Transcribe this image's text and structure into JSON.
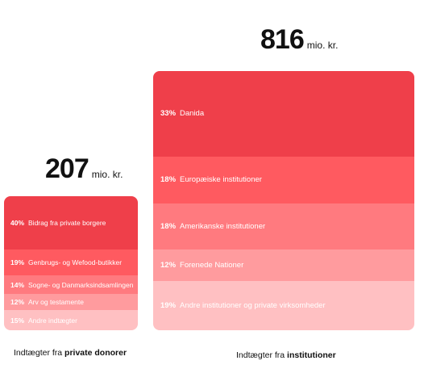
{
  "chart_data": [
    {
      "type": "bar",
      "stacked": true,
      "total_value": "207",
      "total_unit": "mio. kr.",
      "caption_prefix": "Indtægter fra",
      "caption_bold": "private donorer",
      "categories": [
        "Bidrag fra private borgere",
        "Genbrugs- og Wefood-butikker",
        "Sogne- og Danmarksindsamlingen",
        "Arv og testamente",
        "Andre indtægter"
      ],
      "values": [
        40,
        19,
        14,
        12,
        15
      ],
      "labels": [
        "40%",
        "19%",
        "14%",
        "12%",
        "15%"
      ],
      "colors": [
        "#ef3f4a",
        "#ff5a60",
        "#ff7a7f",
        "#ff9b9e",
        "#ffc0c2"
      ]
    },
    {
      "type": "bar",
      "stacked": true,
      "total_value": "816",
      "total_unit": "mio. kr.",
      "caption_prefix": "Indtægter fra",
      "caption_bold": "institutioner",
      "categories": [
        "Danida",
        "Europæiske institutioner",
        "Amerikanske institutioner",
        "Forenede Nationer",
        "Andre institutioner og private virksomheder"
      ],
      "values": [
        33,
        18,
        18,
        12,
        19
      ],
      "labels": [
        "33%",
        "18%",
        "18%",
        "12%",
        "19%"
      ],
      "colors": [
        "#ef3f4a",
        "#ff5a60",
        "#ff7a7f",
        "#ff9b9e",
        "#ffc0c2"
      ]
    }
  ]
}
